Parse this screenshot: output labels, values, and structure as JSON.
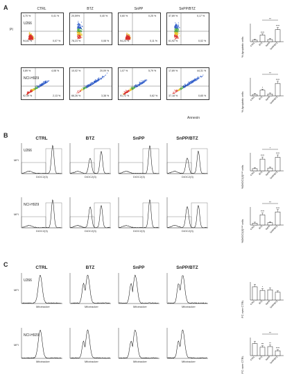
{
  "panels": {
    "A": {
      "letter": "A",
      "conditions": [
        "CTRL",
        "BTZ",
        "SnPP",
        "SnPP/BTZ"
      ],
      "y_axis": "PI",
      "x_axis": "Annexin",
      "rows": [
        {
          "cell_line": "U266",
          "quadrants": [
            {
              "ul": "4,70 %",
              "ur": "0,41 %",
              "ll": "94,81 %",
              "lr": "0,07 %"
            },
            {
              "ul": "20,59%",
              "ur": "0,40 %",
              "ll": "78,23 %",
              "lr": "0,08 %"
            },
            {
              "ul": "0,60 %",
              "ur": "0,25 %",
              "ll": "94,23 %",
              "lr": "0,11 %"
            },
            {
              "ul": "37,89 %",
              "ur": "0,17 %",
              "ll": "61,92 %",
              "lr": "0,02 %"
            }
          ]
        },
        {
          "cell_line": "NCI-H929",
          "quadrants": [
            {
              "ul": "0,89 %",
              "ur": "4,08 %",
              "ll": "92,49 %",
              "lr": "2,13 %"
            },
            {
              "ul": "10,02 %",
              "ur": "20,09 %",
              "ll": "66,26 %",
              "lr": "3,38 %"
            },
            {
              "ul": "1,07 %",
              "ur": "5,79 %",
              "ll": "91,72 %",
              "lr": "0,62 %"
            },
            {
              "ul": "17,89 %",
              "ur": "44,31 %",
              "ll": "37,18 %",
              "lr": "0,65 %"
            }
          ]
        }
      ],
      "bar_ylabel": "% Apoptotic cells",
      "bar_sig_top": "**",
      "bar_stars": [
        [
          "",
          "****",
          "",
          "****"
        ],
        [
          "",
          "*",
          "",
          "****"
        ]
      ]
    },
    "B": {
      "letter": "B",
      "conditions": [
        "CTRL",
        "BTZ",
        "SnPP",
        "SnPP/BTZ"
      ],
      "y_axis": "MFI",
      "x_axis": "DiOC2(3)",
      "rows": [
        "U266",
        "NCI-H929"
      ],
      "bar_ylabel": "%DiOC2(3)ᴸᵒʷ cells",
      "bar_sig_top": [
        "*",
        "**"
      ],
      "bar_stars": [
        [
          "",
          "****",
          "",
          "****"
        ],
        [
          "",
          "****",
          "",
          "****"
        ]
      ]
    },
    "C": {
      "letter": "C",
      "conditions": [
        "CTRL",
        "BTZ",
        "SnPP",
        "SnPP/BTZ"
      ],
      "y_axis": "MFI",
      "x_axis": "Mitotracker",
      "rows": [
        "U266",
        "NCI-H929"
      ],
      "bar_ylabel": "FC over CTRL",
      "bar_sig_top": [
        "",
        "**"
      ],
      "bar_stars": [
        [
          "",
          "*",
          "",
          ""
        ],
        [
          "",
          "***",
          "**",
          "****"
        ]
      ]
    }
  },
  "chart_data": [
    {
      "type": "bar",
      "categories": [
        "CTRL",
        "BTZ",
        "SnPP",
        "SnPP/BTZ"
      ],
      "values": [
        5,
        22,
        7,
        40
      ],
      "ylim": [
        0,
        60
      ],
      "ylabel": "% Apoptotic cells"
    },
    {
      "type": "bar",
      "categories": [
        "CTRL",
        "BTZ",
        "SnPP",
        "SnPP/BTZ"
      ],
      "values": [
        6,
        25,
        8,
        55
      ],
      "ylim": [
        0,
        80
      ],
      "ylabel": "% Apoptotic cells"
    },
    {
      "type": "bar",
      "categories": [
        "CTRL",
        "BTZ",
        "SnPP",
        "SnPP/BTZ"
      ],
      "values": [
        12,
        65,
        15,
        75
      ],
      "ylim": [
        0,
        100
      ],
      "ylabel": "%DiOC2(3)ᴸᵒʷ cells"
    },
    {
      "type": "bar",
      "categories": [
        "CTRL",
        "BTZ",
        "SnPP",
        "SnPP/BTZ"
      ],
      "values": [
        8,
        45,
        10,
        58
      ],
      "ylim": [
        0,
        80
      ],
      "ylabel": "%DiOC2(3)ᴸᵒʷ cells"
    },
    {
      "type": "bar",
      "categories": [
        "CTRL",
        "BTZ",
        "SnPP",
        "SnPP/BTZ"
      ],
      "values": [
        1.1,
        0.8,
        0.85,
        0.65
      ],
      "ylim": [
        0,
        1.5
      ],
      "ylabel": "FC over CTRL"
    },
    {
      "type": "bar",
      "categories": [
        "CTRL",
        "BTZ",
        "SnPP",
        "SnPP/BTZ"
      ],
      "values": [
        1.0,
        0.7,
        0.75,
        0.4
      ],
      "ylim": [
        0,
        1.5
      ],
      "ylabel": "FC over CTRL"
    }
  ]
}
